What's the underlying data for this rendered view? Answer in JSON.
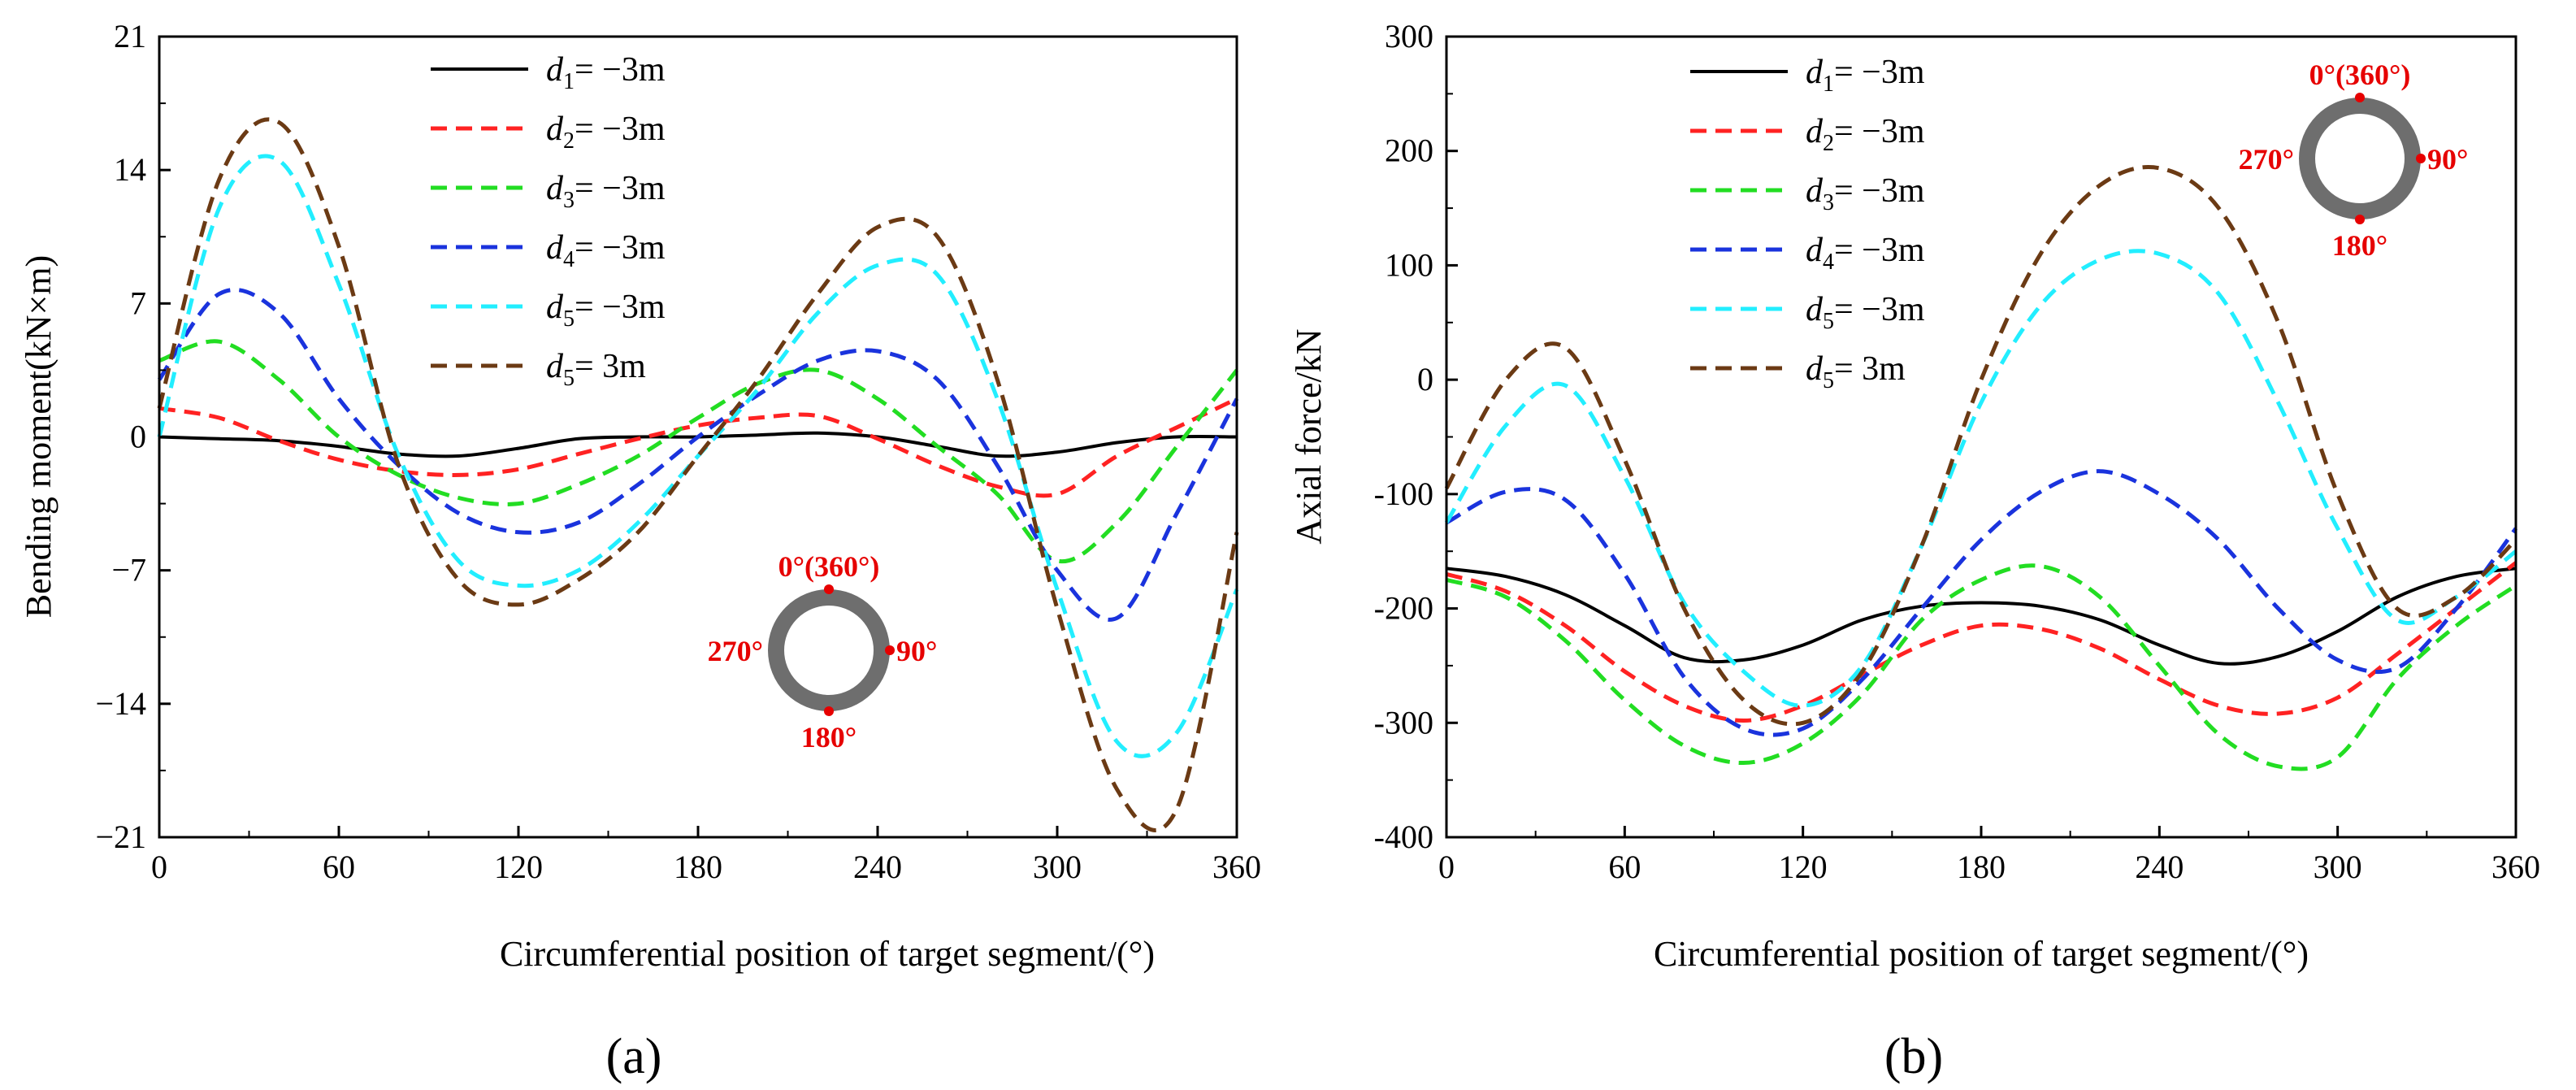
{
  "figure": {
    "panel_labels": [
      "(a)",
      "(b)"
    ]
  },
  "chart_data": [
    {
      "type": "line",
      "panel": "(a)",
      "title": "",
      "xlabel": "Circumferential position of target segment/(°)",
      "ylabel": "Bending moment(kN×m)",
      "xlim": [
        0,
        360
      ],
      "ylim": [
        -21,
        21
      ],
      "xticks": [
        0,
        60,
        120,
        180,
        240,
        300,
        360
      ],
      "xtick_labels": [
        "0",
        "60",
        "120",
        "180",
        "240",
        "300",
        "360"
      ],
      "yticks": [
        -21,
        -14,
        -7,
        0,
        7,
        14,
        21
      ],
      "ytick_labels": [
        "−21",
        "−14",
        "−7",
        "0",
        "7",
        "14",
        "21"
      ],
      "grid": false,
      "legend_position": "top-center",
      "x": [
        0,
        20,
        40,
        60,
        80,
        100,
        120,
        140,
        160,
        180,
        200,
        220,
        240,
        260,
        280,
        300,
        320,
        340,
        360
      ],
      "series": [
        {
          "name": "d1= −3m",
          "sub": "1",
          "suffix": "= −3m",
          "color": "#000000",
          "dash": "solid",
          "values": [
            0,
            -0.1,
            -0.2,
            -0.5,
            -0.9,
            -1.0,
            -0.6,
            -0.1,
            0.0,
            0.0,
            0.1,
            0.2,
            0.0,
            -0.5,
            -1.0,
            -0.8,
            -0.3,
            0.0,
            0.0
          ]
        },
        {
          "name": "d2= −3m",
          "sub": "2",
          "suffix": "= −3m",
          "color": "#ff2222",
          "dash": "dashed",
          "values": [
            1.5,
            1.0,
            -0.2,
            -1.2,
            -1.8,
            -2.0,
            -1.7,
            -0.9,
            -0.1,
            0.6,
            1.0,
            1.1,
            -0.1,
            -1.5,
            -2.6,
            -3.0,
            -1.0,
            0.5,
            2.0
          ]
        },
        {
          "name": "d3= −3m",
          "sub": "3",
          "suffix": "= −3m",
          "color": "#22dd22",
          "dash": "dashed",
          "values": [
            4.0,
            5.0,
            3.0,
            0.0,
            -2.0,
            -3.2,
            -3.5,
            -2.5,
            -1.0,
            1.0,
            2.8,
            3.5,
            2.0,
            -0.5,
            -3.0,
            -6.5,
            -4.5,
            -0.5,
            3.5
          ]
        },
        {
          "name": "d4= −3m",
          "sub": "4",
          "suffix": "= −3m",
          "color": "#1a33dd",
          "dash": "dashed",
          "values": [
            3.0,
            7.5,
            6.5,
            2.0,
            -1.5,
            -4.0,
            -5.0,
            -4.5,
            -2.5,
            0.0,
            2.2,
            4.0,
            4.5,
            3.0,
            -1.5,
            -7.0,
            -9.5,
            -4.0,
            2.0
          ]
        },
        {
          "name": "d5= −3m",
          "sub": "5",
          "suffix": "= −3m",
          "color": "#22eeff",
          "dash": "dashed",
          "values": [
            0,
            12.0,
            14.5,
            8.0,
            -1.0,
            -6.5,
            -7.8,
            -7.0,
            -4.5,
            -1.0,
            2.5,
            6.5,
            9.0,
            8.5,
            2.0,
            -8.0,
            -16.0,
            -15.5,
            -8.0
          ]
        },
        {
          "name": "d5= 3m",
          "sub": "5",
          "suffix": "= 3m",
          "color": "#6b3a14",
          "dash": "dashed",
          "values": [
            1.5,
            13.5,
            16.5,
            10.0,
            -1.5,
            -7.5,
            -8.8,
            -7.5,
            -5.0,
            -1.0,
            3.0,
            7.5,
            11.0,
            10.5,
            3.0,
            -9.0,
            -18.5,
            -19.5,
            -5.0
          ]
        }
      ],
      "inset": {
        "labels": {
          "top": "0°(360°)",
          "right": "90°",
          "bottom": "180°",
          "left": "270°"
        }
      }
    },
    {
      "type": "line",
      "panel": "(b)",
      "title": "",
      "xlabel": "Circumferential position of target segment/(°)",
      "ylabel": "Axial force/kN",
      "xlim": [
        0,
        360
      ],
      "ylim": [
        -400,
        300
      ],
      "xticks": [
        0,
        60,
        120,
        180,
        240,
        300,
        360
      ],
      "xtick_labels": [
        "0",
        "60",
        "120",
        "180",
        "240",
        "300",
        "360"
      ],
      "yticks": [
        -400,
        -300,
        -200,
        -100,
        0,
        100,
        200,
        300
      ],
      "ytick_labels": [
        "-400",
        "-300",
        "-200",
        "-100",
        "0",
        "100",
        "200",
        "300"
      ],
      "grid": false,
      "legend_position": "top-center",
      "x": [
        0,
        20,
        40,
        60,
        80,
        100,
        120,
        140,
        160,
        180,
        200,
        220,
        240,
        260,
        280,
        300,
        320,
        340,
        360
      ],
      "series": [
        {
          "name": "d1= −3m",
          "sub": "1",
          "suffix": "= −3m",
          "color": "#000000",
          "dash": "solid",
          "values": [
            -165,
            -172,
            -188,
            -215,
            -243,
            -245,
            -232,
            -210,
            -198,
            -195,
            -198,
            -210,
            -232,
            -248,
            -242,
            -220,
            -190,
            -172,
            -165
          ]
        },
        {
          "name": "d2= −3m",
          "sub": "2",
          "suffix": "= −3m",
          "color": "#ff2222",
          "dash": "dashed",
          "values": [
            -170,
            -185,
            -215,
            -255,
            -285,
            -298,
            -285,
            -258,
            -232,
            -215,
            -218,
            -235,
            -262,
            -285,
            -292,
            -278,
            -240,
            -200,
            -160
          ]
        },
        {
          "name": "d3= −3m",
          "sub": "3",
          "suffix": "= −3m",
          "color": "#22dd22",
          "dash": "dashed",
          "values": [
            -175,
            -190,
            -228,
            -280,
            -320,
            -335,
            -318,
            -275,
            -210,
            -175,
            -163,
            -190,
            -250,
            -310,
            -338,
            -330,
            -262,
            -215,
            -180
          ]
        },
        {
          "name": "d4= −3m",
          "sub": "4",
          "suffix": "= −3m",
          "color": "#1a33dd",
          "dash": "dashed",
          "values": [
            -125,
            -98,
            -105,
            -170,
            -260,
            -305,
            -305,
            -262,
            -200,
            -140,
            -98,
            -80,
            -100,
            -140,
            -200,
            -245,
            -252,
            -200,
            -130
          ]
        },
        {
          "name": "d5= −3m",
          "sub": "5",
          "suffix": "= −3m",
          "color": "#22eeff",
          "dash": "dashed",
          "values": [
            -125,
            -40,
            -5,
            -85,
            -195,
            -255,
            -285,
            -250,
            -145,
            -20,
            65,
            105,
            110,
            75,
            -20,
            -130,
            -210,
            -190,
            -150
          ]
        },
        {
          "name": "d5= 3m",
          "sub": "5",
          "suffix": "= 3m",
          "color": "#6b3a14",
          "dash": "dashed",
          "values": [
            -95,
            0,
            28,
            -70,
            -200,
            -280,
            -300,
            -255,
            -145,
            0,
            110,
            170,
            185,
            150,
            50,
            -100,
            -200,
            -190,
            -140
          ]
        }
      ],
      "inset": {
        "labels": {
          "top": "0°(360°)",
          "right": "90°",
          "bottom": "180°",
          "left": "270°"
        }
      }
    }
  ]
}
